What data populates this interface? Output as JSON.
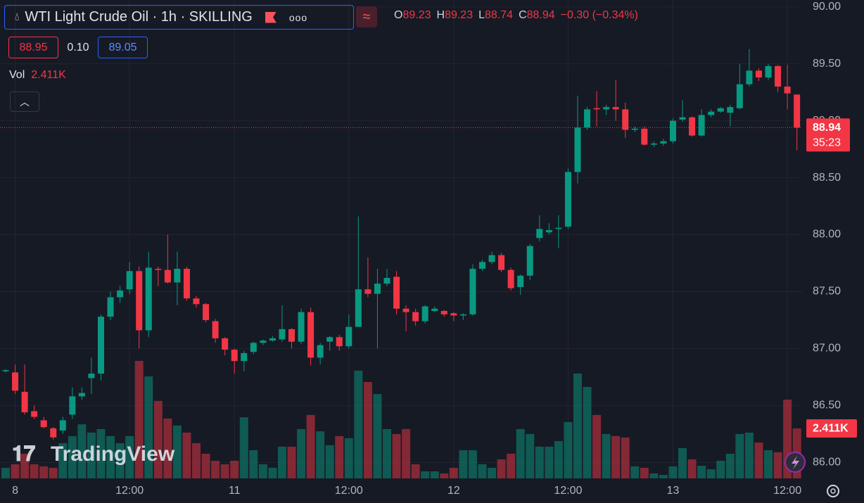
{
  "header": {
    "symbol": "WTI Light Crude Oil · 1h · SKILLING",
    "ohlc": [
      {
        "label": "O",
        "value": "89.23"
      },
      {
        "label": "H",
        "value": "89.23"
      },
      {
        "label": "L",
        "value": "88.74"
      },
      {
        "label": "C",
        "value": "88.94"
      }
    ],
    "change": "−0.30 (−0.34%)",
    "bid": "88.95",
    "spread": "0.10",
    "ask": "89.05",
    "countdown": "35:23",
    "watermark": "TradingView"
  },
  "chart_data": {
    "type": "candlestick",
    "up_color": "#089981",
    "down_color": "#f23645",
    "grid": true,
    "ylim": [
      85.86,
      90.06
    ],
    "yticks": [
      {
        "value": 86,
        "label": "86.00"
      },
      {
        "value": 86.5,
        "label": "86.50"
      },
      {
        "value": 87,
        "label": "87.00"
      },
      {
        "value": 87.5,
        "label": "87.50"
      },
      {
        "value": 88,
        "label": "88.00"
      },
      {
        "value": 88.5,
        "label": "88.50"
      },
      {
        "value": 89,
        "label": "89.00"
      },
      {
        "value": 89.5,
        "label": "89.50"
      },
      {
        "value": 90,
        "label": "90.00"
      }
    ],
    "categories": [
      null,
      "8",
      null,
      null,
      null,
      null,
      null,
      null,
      null,
      null,
      null,
      null,
      null,
      "12:00",
      null,
      null,
      null,
      null,
      null,
      null,
      null,
      null,
      null,
      null,
      "11",
      null,
      null,
      null,
      null,
      null,
      null,
      null,
      null,
      null,
      null,
      null,
      "12:00",
      null,
      null,
      null,
      null,
      null,
      null,
      null,
      null,
      null,
      null,
      "12",
      null,
      null,
      null,
      null,
      null,
      null,
      null,
      null,
      null,
      null,
      null,
      "12:00",
      null,
      null,
      null,
      null,
      null,
      null,
      null,
      null,
      null,
      null,
      "13",
      null,
      null,
      null,
      null,
      null,
      null,
      null,
      null,
      null,
      null,
      null,
      "12:00",
      null
    ],
    "open": [
      86.8,
      86.79,
      86.62,
      86.45,
      86.37,
      86.3,
      86.28,
      86.42,
      86.58,
      86.74,
      86.78,
      87.28,
      87.45,
      87.52,
      87.68,
      87.16,
      87.7,
      87.69,
      87.58,
      87.7,
      87.44,
      87.39,
      87.24,
      87.09,
      86.99,
      86.89,
      86.97,
      87.05,
      87.07,
      87.08,
      87.17,
      87.06,
      87.32,
      86.92,
      87.06,
      87.1,
      87.02,
      87.19,
      87.52,
      87.48,
      87.57,
      87.63,
      87.35,
      87.32,
      87.24,
      87.33,
      87.33,
      87.31,
      87.29,
      87.3,
      87.7,
      87.76,
      87.82,
      87.69,
      87.54,
      87.64,
      87.97,
      88.02,
      88.05,
      88.07,
      88.55,
      88.94,
      89.11,
      89.1,
      89.12,
      89.1,
      88.92,
      88.93,
      88.79,
      88.8,
      88.82,
      89.01,
      89.03,
      88.87,
      89.05,
      89.08,
      89.07,
      89.11,
      89.32,
      89.44,
      89.38,
      89.48,
      89.3,
      89.23
    ],
    "high": [
      86.82,
      86.86,
      86.86,
      86.5,
      86.4,
      86.31,
      86.4,
      86.66,
      86.66,
      86.92,
      87.3,
      87.5,
      87.55,
      87.76,
      87.72,
      87.85,
      87.72,
      88.0,
      87.85,
      87.72,
      87.46,
      87.4,
      87.26,
      87.1,
      87.0,
      86.98,
      87.06,
      87.08,
      87.11,
      87.38,
      87.18,
      87.35,
      87.36,
      87.05,
      87.11,
      87.12,
      87.3,
      88.16,
      87.8,
      87.7,
      87.7,
      87.68,
      87.38,
      87.35,
      87.38,
      87.37,
      87.34,
      87.32,
      87.31,
      87.74,
      87.78,
      87.85,
      87.84,
      87.71,
      87.65,
      87.92,
      88.17,
      88.1,
      88.17,
      88.58,
      89.22,
      89.12,
      89.26,
      89.14,
      89.36,
      89.16,
      88.95,
      88.95,
      88.82,
      88.84,
      89.02,
      89.18,
      89.04,
      89.1,
      89.1,
      89.12,
      89.14,
      89.5,
      89.63,
      89.46,
      89.5,
      89.49,
      89.49,
      89.23
    ],
    "low": [
      86.79,
      86.6,
      86.42,
      86.38,
      86.3,
      86.2,
      86.25,
      86.38,
      86.55,
      86.6,
      86.72,
      87.25,
      87.4,
      87.48,
      87.0,
      87.1,
      87.55,
      87.57,
      87.38,
      87.42,
      87.36,
      87.23,
      87.05,
      86.94,
      86.78,
      86.8,
      86.95,
      87.03,
      87.06,
      87.06,
      87.0,
      87.04,
      86.85,
      86.86,
      86.98,
      86.98,
      87.0,
      87.19,
      87.45,
      87.0,
      87.55,
      87.3,
      87.15,
      87.2,
      87.22,
      87.32,
      87.28,
      87.24,
      87.25,
      87.29,
      87.68,
      87.74,
      87.67,
      87.51,
      87.47,
      87.6,
      87.94,
      88.0,
      87.88,
      88.05,
      88.45,
      88.92,
      88.95,
      89.05,
      89.0,
      88.85,
      88.9,
      88.78,
      88.77,
      88.78,
      88.8,
      88.99,
      88.86,
      88.86,
      89.03,
      89.07,
      88.95,
      89.1,
      89.3,
      89.35,
      89.36,
      89.25,
      89.1,
      88.74
    ],
    "close": [
      86.81,
      86.63,
      86.44,
      86.4,
      86.31,
      86.22,
      86.37,
      86.58,
      86.61,
      86.78,
      87.28,
      87.45,
      87.51,
      87.68,
      87.16,
      87.71,
      87.69,
      87.58,
      87.7,
      87.44,
      87.39,
      87.25,
      87.09,
      86.99,
      86.89,
      86.96,
      87.05,
      87.07,
      87.09,
      87.17,
      87.06,
      87.32,
      86.92,
      87.03,
      87.1,
      87.02,
      87.19,
      87.52,
      87.48,
      87.57,
      87.62,
      87.35,
      87.32,
      87.24,
      87.37,
      87.35,
      87.3,
      87.29,
      87.3,
      87.7,
      87.76,
      87.82,
      87.69,
      87.53,
      87.64,
      87.9,
      88.05,
      88.04,
      88.06,
      88.55,
      88.94,
      89.1,
      89.1,
      89.12,
      89.1,
      88.92,
      88.93,
      88.79,
      88.8,
      88.82,
      89.0,
      89.03,
      88.87,
      89.05,
      89.08,
      89.11,
      89.12,
      89.32,
      89.44,
      89.38,
      89.48,
      89.3,
      89.24,
      88.94
    ],
    "volume": {
      "name": "Vol",
      "values": [
        510,
        680,
        1190,
        680,
        580,
        510,
        1700,
        2040,
        2610,
        2210,
        2380,
        2040,
        1700,
        2040,
        5670,
        4920,
        3740,
        2890,
        2550,
        2210,
        1700,
        1190,
        850,
        680,
        850,
        2950,
        1360,
        680,
        510,
        1530,
        1530,
        2380,
        3060,
        2270,
        1600,
        2040,
        1940,
        5200,
        4650,
        4070,
        2380,
        2140,
        2380,
        680,
        340,
        340,
        240,
        510,
        1360,
        1360,
        680,
        510,
        920,
        1190,
        2380,
        2140,
        1530,
        1530,
        1800,
        2720,
        5060,
        4410,
        3060,
        2140,
        2040,
        1970,
        580,
        510,
        240,
        170,
        580,
        1460,
        920,
        610,
        440,
        850,
        1190,
        2140,
        2210,
        1730,
        1360,
        1260,
        3800,
        2411
      ],
      "value_labels": [
        null,
        null,
        null,
        null,
        null,
        null,
        null,
        null,
        null,
        null,
        null,
        null,
        null,
        null,
        null,
        null,
        null,
        null,
        null,
        null,
        null,
        null,
        null,
        null,
        null,
        null,
        null,
        null,
        null,
        null,
        null,
        null,
        null,
        null,
        null,
        null,
        null,
        null,
        null,
        null,
        null,
        null,
        null,
        null,
        null,
        null,
        null,
        null,
        null,
        null,
        null,
        null,
        null,
        null,
        null,
        null,
        null,
        null,
        null,
        null,
        null,
        null,
        null,
        null,
        null,
        null,
        null,
        null,
        null,
        null,
        null,
        null,
        null,
        null,
        null,
        null,
        null,
        null,
        null,
        null,
        null,
        null,
        null,
        "2.411K"
      ]
    }
  }
}
